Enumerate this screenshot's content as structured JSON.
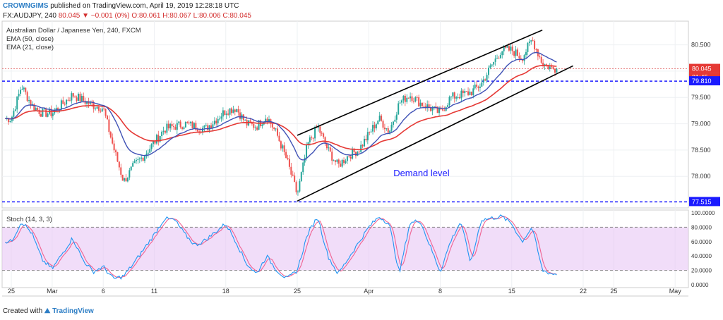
{
  "header": {
    "publisher": "CROWNGIMS",
    "published_text": "published on TradingView.com, April 19, 2019 12:28:18 UTC",
    "symbol": "FX:AUDJPY, 240",
    "last": "80.045",
    "change": "▼ −0.001 (0%)",
    "o": "O:80.061",
    "h": "H:80.067",
    "l": "L:80.006",
    "c": "C:80.045"
  },
  "footer": {
    "created_with": "Created with",
    "brand": "TradingView"
  },
  "chart_data": [
    {
      "type": "candlestick",
      "title": "Australian Dollar / Japanese Yen, 240, FXCM",
      "legend": [
        "EMA (50, close)",
        "EMA (21, close)"
      ],
      "y_ticks": [
        "80.500",
        "80.000",
        "79.500",
        "79.000",
        "78.500",
        "78.000"
      ],
      "x_ticks": [
        "25",
        "Mar",
        "6",
        "11",
        "18",
        "25",
        "Apr",
        "8",
        "15",
        "22",
        "25",
        "May"
      ],
      "ylim": [
        77.4,
        80.95
      ],
      "price_labels": {
        "last": "80.045",
        "countdown": "31:45",
        "resistance": "79.810",
        "support": "77.515"
      },
      "levels": [
        {
          "name": "resistance",
          "value": 79.81
        },
        {
          "name": "support",
          "value": 77.515
        },
        {
          "name": "last",
          "value": 80.045
        }
      ],
      "annotation": "Demand level",
      "channel": {
        "upper": [
          [
            "Mar 25",
            78.78
          ],
          [
            "Apr 18",
            80.78
          ]
        ],
        "lower": [
          [
            "Mar 25",
            77.53
          ],
          [
            "Apr 21",
            80.1
          ]
        ]
      },
      "price_anchors": [
        [
          "Feb 25",
          79.1
        ],
        [
          "Feb 26",
          79.72
        ],
        [
          "Feb 27",
          79.35
        ],
        [
          "Feb 28",
          79.2
        ],
        [
          "Mar 1",
          79.2
        ],
        [
          "Mar 3",
          79.55
        ],
        [
          "Mar 5",
          79.35
        ],
        [
          "Mar 6",
          79.3
        ],
        [
          "Mar 7",
          78.55
        ],
        [
          "Mar 8",
          77.9
        ],
        [
          "Mar 9",
          78.2
        ],
        [
          "Mar 10",
          78.4
        ],
        [
          "Mar 12",
          78.9
        ],
        [
          "Mar 14",
          79.0
        ],
        [
          "Mar 16",
          78.9
        ],
        [
          "Mar 18",
          79.25
        ],
        [
          "Mar 19",
          79.3
        ],
        [
          "Mar 20",
          79.0
        ],
        [
          "Mar 21",
          78.95
        ],
        [
          "Mar 22",
          79.15
        ],
        [
          "Mar 23",
          78.8
        ],
        [
          "Mar 24",
          78.3
        ],
        [
          "Mar 25",
          77.65
        ],
        [
          "Mar 26",
          78.6
        ],
        [
          "Mar 27",
          78.95
        ],
        [
          "Mar 28",
          78.5
        ],
        [
          "Mar 29",
          78.2
        ],
        [
          "Mar 30",
          78.4
        ],
        [
          "Mar 31",
          78.5
        ],
        [
          "Apr 1",
          78.8
        ],
        [
          "Apr 2",
          79.1
        ],
        [
          "Apr 3",
          78.85
        ],
        [
          "Apr 4",
          79.4
        ],
        [
          "Apr 5",
          79.55
        ],
        [
          "Apr 6",
          79.4
        ],
        [
          "Apr 8",
          79.2
        ],
        [
          "Apr 9",
          79.5
        ],
        [
          "Apr 10",
          79.55
        ],
        [
          "Apr 11",
          79.6
        ],
        [
          "Apr 12",
          79.75
        ],
        [
          "Apr 13",
          80.1
        ],
        [
          "Apr 14",
          80.4
        ],
        [
          "Apr 15",
          80.4
        ],
        [
          "Apr 16",
          80.25
        ],
        [
          "Apr 17",
          80.6
        ],
        [
          "Apr 18",
          80.15
        ],
        [
          "Apr 19",
          80.045
        ]
      ]
    },
    {
      "type": "line",
      "title": "Stoch (14, 3, 3)",
      "y_ticks": [
        "100.0000",
        "80.0000",
        "60.0000",
        "40.0000",
        "20.0000",
        "0.0000"
      ],
      "ylim": [
        0,
        100
      ],
      "bands": [
        20,
        80
      ],
      "stoch_anchors": [
        [
          "Feb 25",
          60
        ],
        [
          "Feb 26",
          88
        ],
        [
          "Feb 27",
          72
        ],
        [
          "Feb 28",
          35
        ],
        [
          "Mar 1",
          22
        ],
        [
          "Mar 3",
          65
        ],
        [
          "Mar 4",
          35
        ],
        [
          "Mar 5",
          18
        ],
        [
          "Mar 6",
          25
        ],
        [
          "Mar 7",
          8
        ],
        [
          "Mar 8",
          12
        ],
        [
          "Mar 9",
          30
        ],
        [
          "Mar 11",
          70
        ],
        [
          "Mar 12",
          92
        ],
        [
          "Mar 13",
          90
        ],
        [
          "Mar 14",
          70
        ],
        [
          "Mar 15",
          55
        ],
        [
          "Mar 16",
          62
        ],
        [
          "Mar 18",
          85
        ],
        [
          "Mar 19",
          60
        ],
        [
          "Mar 20",
          30
        ],
        [
          "Mar 21",
          15
        ],
        [
          "Mar 22",
          40
        ],
        [
          "Mar 23",
          20
        ],
        [
          "Mar 24",
          8
        ],
        [
          "Mar 25",
          20
        ],
        [
          "Mar 26",
          70
        ],
        [
          "Mar 27",
          95
        ],
        [
          "Mar 28",
          40
        ],
        [
          "Mar 29",
          15
        ],
        [
          "Apr 1",
          80
        ],
        [
          "Apr 2",
          95
        ],
        [
          "Apr 3",
          85
        ],
        [
          "Apr 4",
          15
        ],
        [
          "Apr 5",
          85
        ],
        [
          "Apr 6",
          90
        ],
        [
          "Apr 8",
          18
        ],
        [
          "Apr 9",
          60
        ],
        [
          "Apr 10",
          88
        ],
        [
          "Apr 11",
          30
        ],
        [
          "Apr 12",
          90
        ],
        [
          "Apr 14",
          95
        ],
        [
          "Apr 15",
          85
        ],
        [
          "Apr 16",
          60
        ],
        [
          "Apr 17",
          80
        ],
        [
          "Apr 18",
          20
        ],
        [
          "Apr 19",
          15
        ]
      ]
    }
  ],
  "colors": {
    "up": "#26a69a",
    "down": "#ef5350",
    "ema50": "#e53935",
    "ema21": "#3f51b5",
    "level": "#1a1aff",
    "stoch_band": "#e7c6f5",
    "stoch_k": "#2196f3",
    "stoch_d": "#f06292"
  }
}
